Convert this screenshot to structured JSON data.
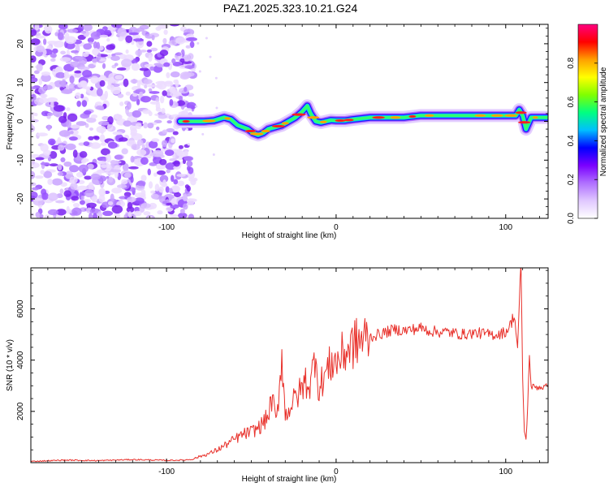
{
  "title": "PAZ1.2025.323.10.21.G24",
  "chart_data": [
    {
      "type": "heatmap",
      "title": "PAZ1.2025.323.10.21.G24",
      "xlabel": "Height of straight line (km)",
      "ylabel": "Frequency (Hz)",
      "xlim": [
        -180,
        125
      ],
      "ylim": [
        -25,
        25
      ],
      "xticks": [
        -100,
        0,
        100
      ],
      "xtick_labels": [
        "-100",
        "0",
        "100"
      ],
      "yticks": [
        -20,
        -10,
        0,
        10,
        20
      ],
      "ytick_labels": [
        "-20",
        "-10",
        "0",
        "10",
        "20"
      ],
      "colorbar": {
        "label": "Normalized spectral amplitude",
        "range": [
          0,
          1
        ],
        "ticks": [
          0.0,
          0.2,
          0.4,
          0.6,
          0.8
        ],
        "tick_labels": [
          "0.0",
          "0.2",
          "0.4",
          "0.6",
          "0.8"
        ],
        "colormap": [
          "#ffffff",
          "#e0c8ff",
          "#b070ff",
          "#7a00ff",
          "#0000ff",
          "#00bfff",
          "#00ff80",
          "#80ff00",
          "#ffff00",
          "#ffa000",
          "#ff0000",
          "#ff0080"
        ]
      },
      "noise_region_x": [
        -180,
        -88
      ],
      "signal_track": {
        "x": [
          -92,
          -85,
          -78,
          -72,
          -66,
          -62,
          -58,
          -55,
          -52,
          -49,
          -46,
          -43,
          -40,
          -36,
          -32,
          -28,
          -24,
          -20,
          -17,
          -15,
          -12,
          -9,
          -6,
          -3,
          0,
          5,
          10,
          20,
          30,
          40,
          50,
          60,
          70,
          80,
          90,
          100,
          106,
          108,
          110,
          112,
          115,
          120,
          125
        ],
        "freq_hz": [
          0,
          0,
          0,
          0.2,
          1,
          0.5,
          -1,
          -1.5,
          -2,
          -3,
          -3.5,
          -3,
          -2,
          -1.5,
          -1,
          0,
          1,
          2.5,
          4,
          2,
          0,
          -0.3,
          0,
          0.3,
          0.2,
          0.2,
          0.5,
          1,
          1,
          1,
          1.5,
          1.5,
          1.5,
          1.5,
          1.5,
          1.5,
          1.5,
          3,
          1.5,
          -2,
          1,
          1,
          1
        ]
      }
    },
    {
      "type": "line",
      "title": "",
      "xlabel": "Height of straight line (km)",
      "ylabel": "SNR (10 * v/v)",
      "xlim": [
        -180,
        125
      ],
      "ylim": [
        0,
        7600
      ],
      "xticks": [
        -100,
        0,
        100
      ],
      "xtick_labels": [
        "-100",
        "0",
        "100"
      ],
      "yticks": [
        2000,
        4000,
        6000
      ],
      "ytick_labels": [
        "2000",
        "4000",
        "6000"
      ],
      "series": [
        {
          "name": "SNR",
          "color": "#e8302a",
          "x": [
            -180,
            -160,
            -140,
            -120,
            -100,
            -90,
            -85,
            -80,
            -75,
            -70,
            -65,
            -60,
            -55,
            -50,
            -45,
            -40,
            -38,
            -35,
            -32,
            -30,
            -28,
            -25,
            -22,
            -20,
            -18,
            -15,
            -12,
            -10,
            -8,
            -5,
            -2,
            0,
            5,
            10,
            15,
            20,
            25,
            30,
            35,
            40,
            45,
            50,
            55,
            60,
            65,
            70,
            75,
            80,
            85,
            90,
            95,
            100,
            103,
            105,
            107,
            109,
            110,
            111,
            112,
            113,
            114,
            115,
            120,
            125
          ],
          "y": [
            50,
            100,
            80,
            120,
            90,
            100,
            130,
            250,
            350,
            500,
            700,
            900,
            1100,
            1200,
            1400,
            1800,
            2500,
            1600,
            4300,
            1800,
            2100,
            2400,
            2700,
            2900,
            3200,
            3000,
            4500,
            2600,
            3300,
            3600,
            4000,
            3900,
            4300,
            4600,
            4800,
            4900,
            5000,
            5100,
            5200,
            5150,
            5200,
            5250,
            5150,
            5100,
            5100,
            5050,
            5000,
            5050,
            5050,
            5000,
            5000,
            5100,
            5400,
            5800,
            4500,
            7700,
            3300,
            1200,
            900,
            2200,
            4300,
            2950,
            2950,
            2950
          ]
        }
      ]
    }
  ]
}
